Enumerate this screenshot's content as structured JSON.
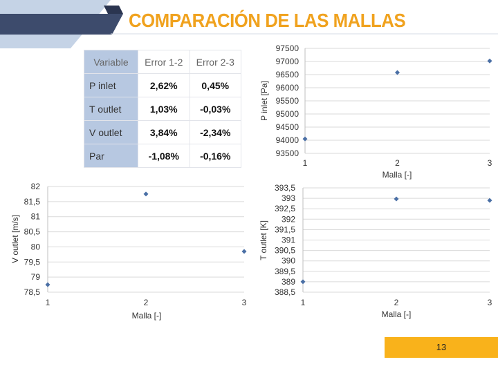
{
  "title": "COMPARACIÓN DE LAS MALLAS",
  "page_number": "13",
  "colors": {
    "accent": "#f0a21e",
    "navy": "#3d4b6c",
    "light_blue": "#b7c8e1",
    "marker": "#4a6fa5",
    "page_badge": "#f9b21b"
  },
  "table": {
    "headers": [
      "Variable",
      "Error 1-2",
      "Error 2-3"
    ],
    "rows": [
      {
        "label": "P inlet",
        "e12": "2,62%",
        "e23": "0,45%"
      },
      {
        "label": "T outlet",
        "e12": "1,03%",
        "e23": "-0,03%"
      },
      {
        "label": "V outlet",
        "e12": "3,84%",
        "e23": "-2,34%"
      },
      {
        "label": "Par",
        "e12": "-1,08%",
        "e23": "-0,16%"
      }
    ]
  },
  "chart_data": [
    {
      "id": "p-inlet",
      "type": "scatter",
      "xlabel": "Malla [-]",
      "ylabel": "P inlet [Pa]",
      "xlim": [
        1,
        3
      ],
      "ylim": [
        93500,
        97500
      ],
      "xticks": [
        "1",
        "2",
        "3"
      ],
      "yticks": [
        "97500",
        "97000",
        "96500",
        "96000",
        "95500",
        "95000",
        "94500",
        "94000",
        "93500"
      ],
      "x": [
        1,
        2,
        3
      ],
      "y": [
        94050,
        96580,
        97020
      ],
      "grid": "horizontal"
    },
    {
      "id": "v-outlet",
      "type": "scatter",
      "xlabel": "Malla [-]",
      "ylabel": "V outlet [m/s]",
      "xlim": [
        1,
        3
      ],
      "ylim": [
        78.5,
        82
      ],
      "xticks": [
        "1",
        "2",
        "3"
      ],
      "yticks": [
        "82",
        "81,5",
        "81",
        "80,5",
        "80",
        "79,5",
        "79",
        "78,5"
      ],
      "x": [
        1,
        2,
        3
      ],
      "y": [
        78.75,
        81.75,
        79.85
      ],
      "grid": "horizontal"
    },
    {
      "id": "t-outlet",
      "type": "scatter",
      "xlabel": "Malla [-]",
      "ylabel": "T outlet [K]",
      "xlim": [
        1,
        3
      ],
      "ylim": [
        388.5,
        393.5
      ],
      "xticks": [
        "1",
        "2",
        "3"
      ],
      "yticks": [
        "393,5",
        "393",
        "392,5",
        "392",
        "391,5",
        "391",
        "390,5",
        "390",
        "389,5",
        "389",
        "388,5"
      ],
      "x": [
        1,
        2,
        3
      ],
      "y": [
        389.0,
        392.97,
        392.9
      ],
      "grid": "horizontal"
    }
  ]
}
